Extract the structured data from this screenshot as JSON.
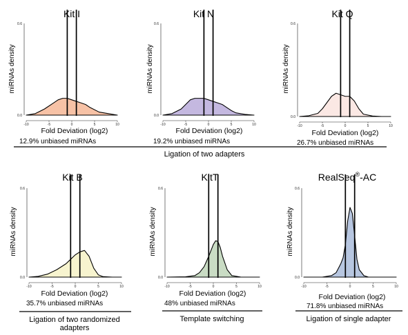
{
  "figure": {
    "groups": [
      {
        "label": "Ligation of two adapters"
      },
      {
        "label": "Ligation of two randomized adapters"
      },
      {
        "label": "Template switching"
      },
      {
        "label": "Ligation of single adapter"
      }
    ]
  },
  "chart_data": [
    {
      "type": "area",
      "title": "Kit I",
      "xlabel": "Fold Deviation (log2)",
      "ylabel": "miRNAs density",
      "caption": "12.9% unbiased miRNAs",
      "fill": "#f7c2a6",
      "vlines": [
        -1,
        1
      ],
      "xlim": [
        -10,
        10
      ],
      "ylim": [
        0,
        0.6
      ],
      "xticks": [
        -10,
        -5,
        0,
        5,
        10
      ],
      "xtick_labels": [
        "-10",
        "-5",
        "0",
        "5",
        "10"
      ],
      "yticks": [
        0,
        0.6
      ],
      "series": [
        {
          "x": [
            -10,
            -8,
            -6,
            -4,
            -3,
            -2,
            -1,
            0,
            1,
            2,
            3,
            4,
            6,
            8,
            10
          ],
          "y": [
            0.0,
            0.01,
            0.04,
            0.08,
            0.1,
            0.11,
            0.11,
            0.1,
            0.09,
            0.08,
            0.07,
            0.05,
            0.02,
            0.01,
            0.0
          ]
        }
      ]
    },
    {
      "type": "area",
      "title": "Kit N",
      "xlabel": "Fold Deviation (log2)",
      "ylabel": "miRNAs density",
      "caption": "19.2% unbiased miRNAs",
      "fill": "#c4b8e0",
      "vlines": [
        -1,
        1
      ],
      "xlim": [
        -10,
        10
      ],
      "ylim": [
        0,
        0.6
      ],
      "xticks": [
        -10,
        -5,
        0,
        5,
        10
      ],
      "xtick_labels": [
        "-10",
        "-5",
        "0",
        "5",
        "10"
      ],
      "yticks": [
        0,
        0.6
      ],
      "series": [
        {
          "x": [
            -10,
            -8,
            -6,
            -5,
            -4,
            -3,
            -2,
            -1,
            0,
            1,
            2,
            3,
            4,
            5,
            6,
            8,
            10
          ],
          "y": [
            0.0,
            0.01,
            0.04,
            0.07,
            0.1,
            0.11,
            0.11,
            0.11,
            0.1,
            0.09,
            0.08,
            0.07,
            0.05,
            0.03,
            0.015,
            0.005,
            0.0
          ]
        }
      ]
    },
    {
      "type": "area",
      "title": "Kit Q",
      "xlabel": "Fold Deviation (log2)",
      "ylabel": "miRNAs density",
      "caption": "26.7% unbiased miRNAs",
      "fill": "#fbe8e4",
      "vlines": [
        -1,
        1
      ],
      "xlim": [
        -10,
        10
      ],
      "ylim": [
        0,
        0.6
      ],
      "xticks": [
        -10,
        -5,
        0,
        5,
        10
      ],
      "xtick_labels": [
        "-10",
        "-5",
        "0",
        "5",
        "10"
      ],
      "yticks": [
        0,
        0.6
      ],
      "series": [
        {
          "x": [
            -10,
            -8,
            -6,
            -5,
            -4,
            -3,
            -2,
            -1,
            0,
            1,
            2,
            3,
            4,
            6,
            8,
            10
          ],
          "y": [
            0.0,
            0.005,
            0.02,
            0.05,
            0.09,
            0.13,
            0.15,
            0.14,
            0.13,
            0.13,
            0.1,
            0.05,
            0.015,
            0.003,
            0.0,
            0.0
          ]
        }
      ]
    },
    {
      "type": "area",
      "title": "Kit B",
      "xlabel": "Fold Deviation (log2)",
      "ylabel": "miRNAs density",
      "caption": "35.7% unbiased miRNAs",
      "fill": "#f7f4cf",
      "vlines": [
        -1,
        1
      ],
      "xlim": [
        -10,
        10
      ],
      "ylim": [
        0,
        0.6
      ],
      "xticks": [
        -10,
        -5,
        0,
        5,
        10
      ],
      "xtick_labels": [
        "-10",
        "-5",
        "0",
        "5",
        "10"
      ],
      "yticks": [
        0,
        0.6
      ],
      "series": [
        {
          "x": [
            -10,
            -8,
            -6,
            -4,
            -2,
            -1,
            0,
            1,
            2,
            3,
            4,
            5,
            6,
            8,
            10
          ],
          "y": [
            0.0,
            0.005,
            0.02,
            0.05,
            0.09,
            0.12,
            0.15,
            0.17,
            0.18,
            0.14,
            0.06,
            0.015,
            0.003,
            0.0,
            0.0
          ]
        }
      ]
    },
    {
      "type": "area",
      "title": "KitT",
      "xlabel": "Fold Deviation (log2)",
      "ylabel": "miRNAs density",
      "caption": "48% unbiased miRNAs",
      "fill": "#c9dcc4",
      "vlines": [
        -1,
        1
      ],
      "xlim": [
        -10,
        10
      ],
      "ylim": [
        0,
        0.6
      ],
      "xticks": [
        -10,
        -5,
        0,
        5,
        10
      ],
      "xtick_labels": [
        "-10",
        "-5",
        "0",
        "5",
        "10"
      ],
      "yticks": [
        0,
        0.6
      ],
      "series": [
        {
          "x": [
            -10,
            -6,
            -4,
            -3,
            -2,
            -1,
            0,
            0.5,
            1,
            1.5,
            2,
            3,
            4,
            6,
            10
          ],
          "y": [
            0.0,
            0.002,
            0.01,
            0.03,
            0.07,
            0.14,
            0.22,
            0.245,
            0.24,
            0.2,
            0.14,
            0.05,
            0.01,
            0.0,
            0.0
          ]
        }
      ]
    },
    {
      "type": "area",
      "title": "RealSeq",
      "title_superscript": "®",
      "title_suffix": "-AC",
      "xlabel": "Fold Deviation (log2)",
      "ylabel": "miRNAs density",
      "caption": "71.8% unbiased miRNAs",
      "fill": "#b7c6e0",
      "vlines": [
        -1,
        1
      ],
      "xlim": [
        -10,
        10
      ],
      "ylim": [
        0,
        0.6
      ],
      "xticks": [
        -10,
        -5,
        0,
        5,
        10
      ],
      "xtick_labels": [
        "-10",
        "-5",
        "0",
        "5",
        "10"
      ],
      "yticks": [
        0,
        0.6
      ],
      "series": [
        {
          "x": [
            -10,
            -6,
            -4,
            -3,
            -2.5,
            -2,
            -1.5,
            -1,
            -0.5,
            0,
            0.5,
            1,
            1.5,
            2,
            3,
            4,
            10
          ],
          "y": [
            0.0,
            0.0,
            0.01,
            0.03,
            0.06,
            0.09,
            0.13,
            0.22,
            0.38,
            0.47,
            0.43,
            0.28,
            0.12,
            0.05,
            0.01,
            0.0,
            0.0
          ]
        }
      ]
    }
  ]
}
